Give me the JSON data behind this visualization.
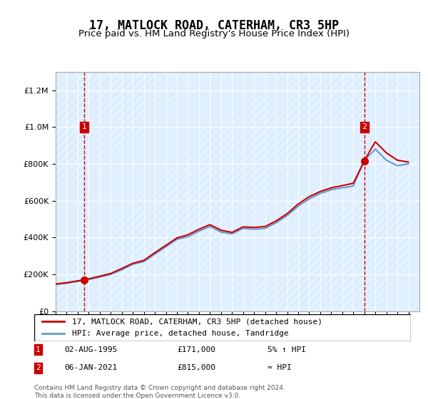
{
  "title": "17, MATLOCK ROAD, CATERHAM, CR3 5HP",
  "subtitle": "Price paid vs. HM Land Registry's House Price Index (HPI)",
  "legend_line1": "17, MATLOCK ROAD, CATERHAM, CR3 5HP (detached house)",
  "legend_line2": "HPI: Average price, detached house, Tandridge",
  "annotation1_label": "1",
  "annotation1_date": "02-AUG-1995",
  "annotation1_price": "£171,000",
  "annotation1_hpi": "5% ↑ HPI",
  "annotation2_label": "2",
  "annotation2_date": "06-JAN-2021",
  "annotation2_price": "£815,000",
  "annotation2_hpi": "≈ HPI",
  "footer": "Contains HM Land Registry data © Crown copyright and database right 2024.\nThis data is licensed under the Open Government Licence v3.0.",
  "price_color": "#cc0000",
  "hpi_color": "#6699cc",
  "background_color": "#ddeeff",
  "hatch_color": "#cccccc",
  "ylim": [
    0,
    1300000
  ],
  "xlim_start": 1993,
  "xlim_end": 2026
}
